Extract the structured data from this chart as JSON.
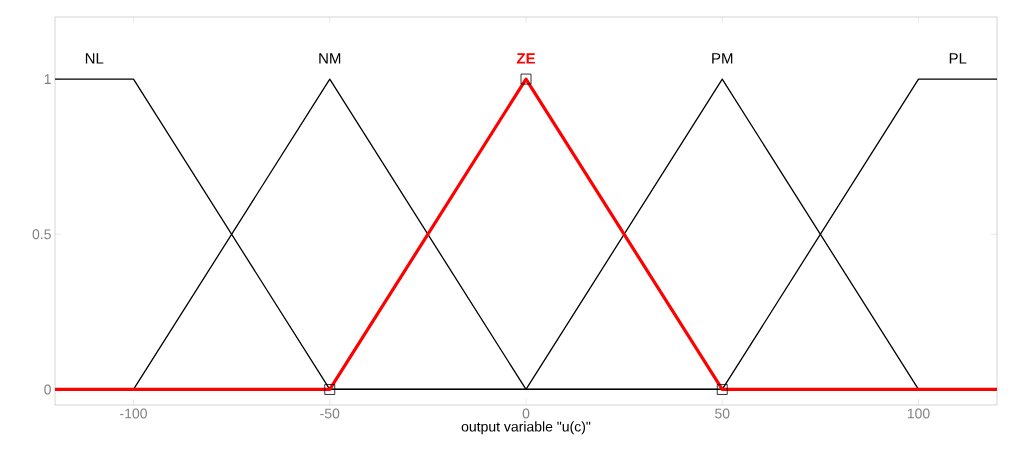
{
  "chart_data": {
    "type": "line",
    "xlabel": "output variable \"u(c)\"",
    "xlim": [
      -120,
      120
    ],
    "ylim": [
      -0.05,
      1.2
    ],
    "xticks": [
      -100,
      -50,
      0,
      50,
      100
    ],
    "yticks": [
      0,
      0.5,
      1
    ],
    "marker": "none",
    "line_style": "solid",
    "series": [
      {
        "name": "NL",
        "color": "#000000",
        "x": [
          -120,
          -100,
          -50,
          120
        ],
        "values": [
          1,
          1,
          0,
          0
        ]
      },
      {
        "name": "NM",
        "color": "#000000",
        "x": [
          -120,
          -100,
          -50,
          0,
          120
        ],
        "values": [
          0,
          0,
          1,
          0,
          0
        ]
      },
      {
        "name": "PM",
        "color": "#000000",
        "x": [
          -120,
          0,
          50,
          100,
          120
        ],
        "values": [
          0,
          0,
          1,
          0,
          0
        ]
      },
      {
        "name": "PL",
        "color": "#000000",
        "x": [
          -120,
          50,
          100,
          120
        ],
        "values": [
          0,
          0,
          1,
          1
        ]
      },
      {
        "name": "ZE",
        "color": "#ff0000",
        "x": [
          -120,
          -50,
          0,
          50,
          120
        ],
        "values": [
          0,
          0,
          1,
          0,
          0
        ]
      },
      {
        "type": "scatter",
        "marker": "square",
        "color": "#000000",
        "x": [
          -50,
          0,
          50
        ],
        "values": [
          0,
          1,
          0
        ]
      }
    ]
  }
}
